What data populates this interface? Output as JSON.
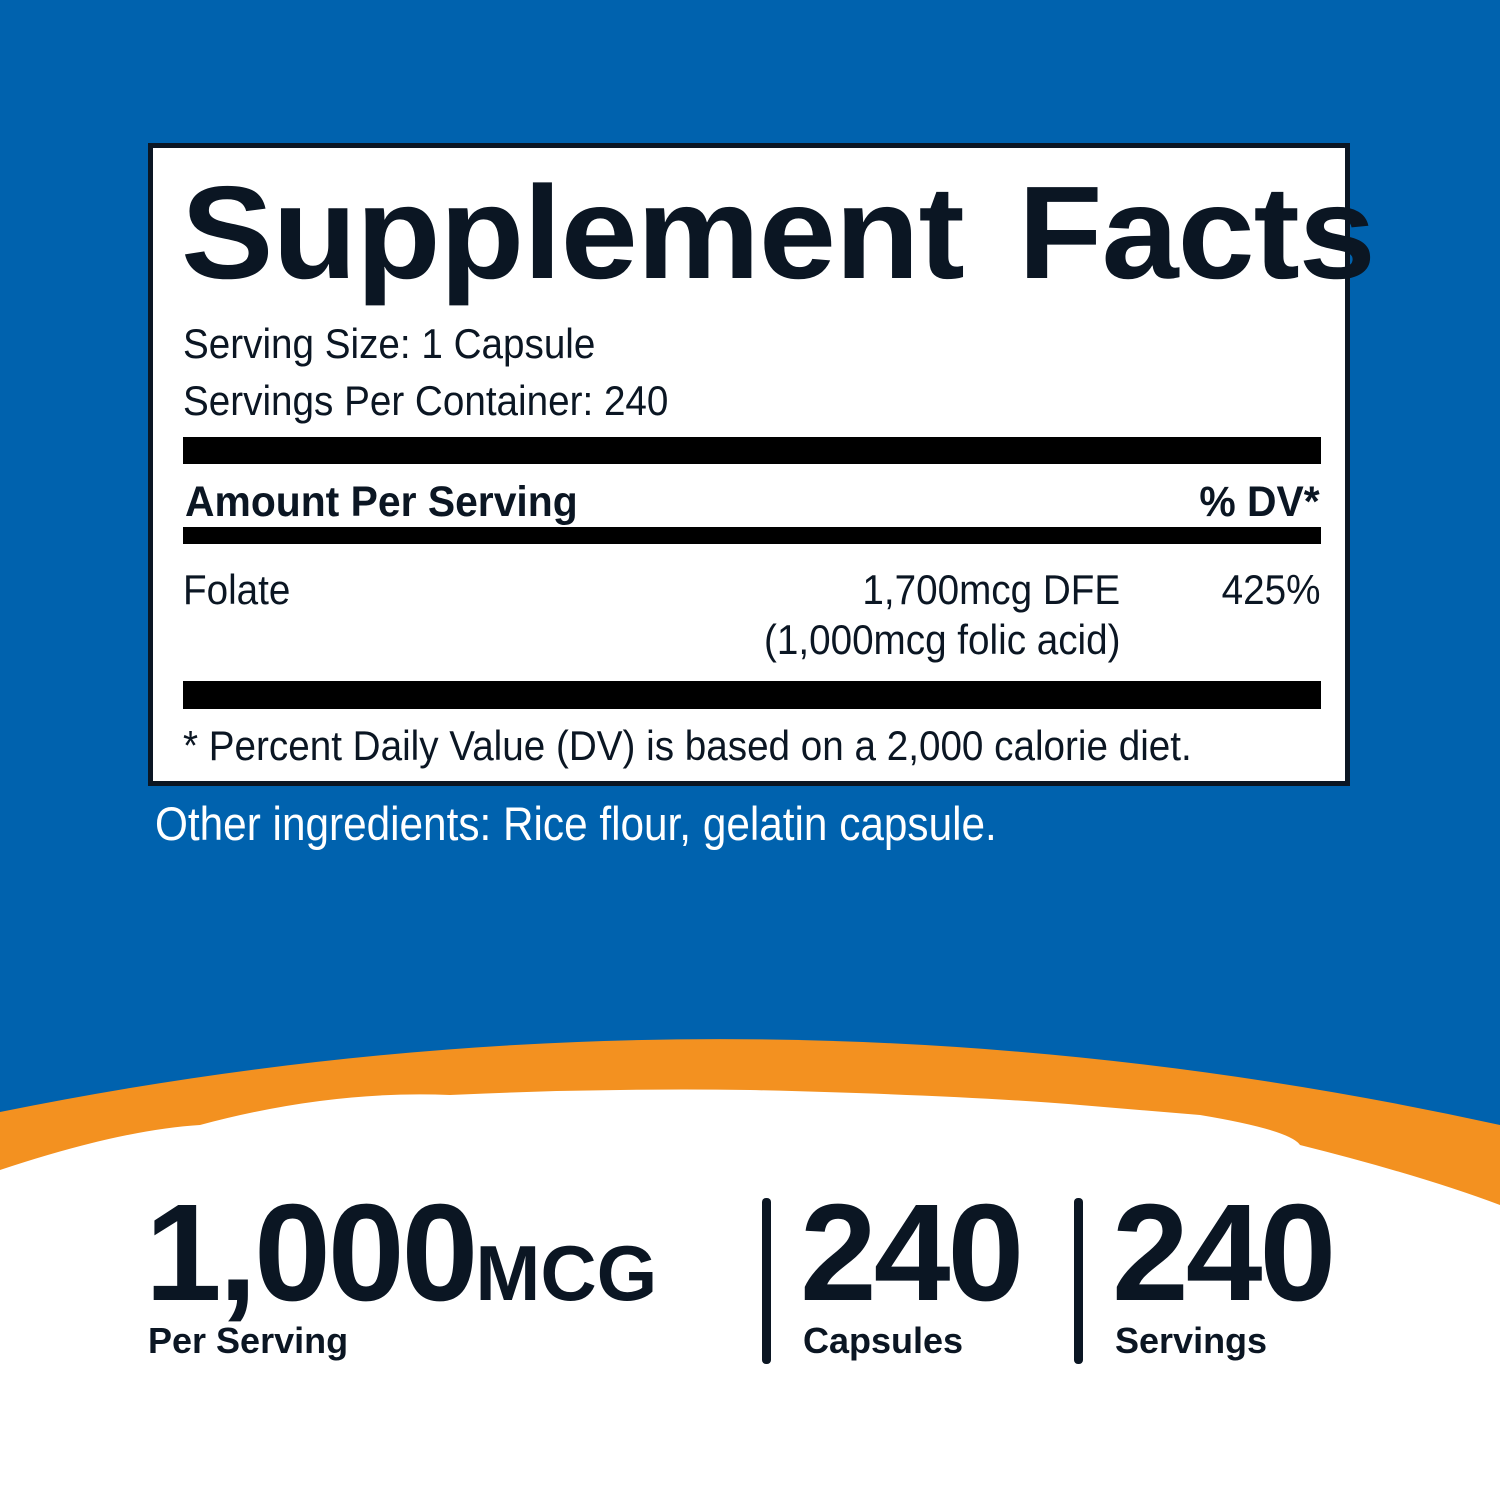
{
  "colors": {
    "background_blue": "#0062ae",
    "accent_orange": "#f39120",
    "text_dark": "#0b1623"
  },
  "label": {
    "title": "Supplement Facts",
    "serving_size": "Serving Size: 1 Capsule",
    "servings_per_container": "Servings Per Container: 240",
    "amount_header": "Amount Per Serving",
    "dv_header": "% DV*",
    "rows": [
      {
        "name": "Folate",
        "amount": "1,700mcg DFE",
        "amount_note": "(1,000mcg folic acid)",
        "dv": "425%"
      }
    ],
    "footnote": "* Percent Daily Value (DV) is based on a 2,000 calorie diet."
  },
  "other_ingredients": "Other ingredients: Rice flour, gelatin capsule.",
  "stats": [
    {
      "value": "1,000",
      "unit": "MCG",
      "caption": "Per Serving"
    },
    {
      "value": "240",
      "caption": "Capsules"
    },
    {
      "value": "240",
      "caption": "Servings"
    }
  ]
}
